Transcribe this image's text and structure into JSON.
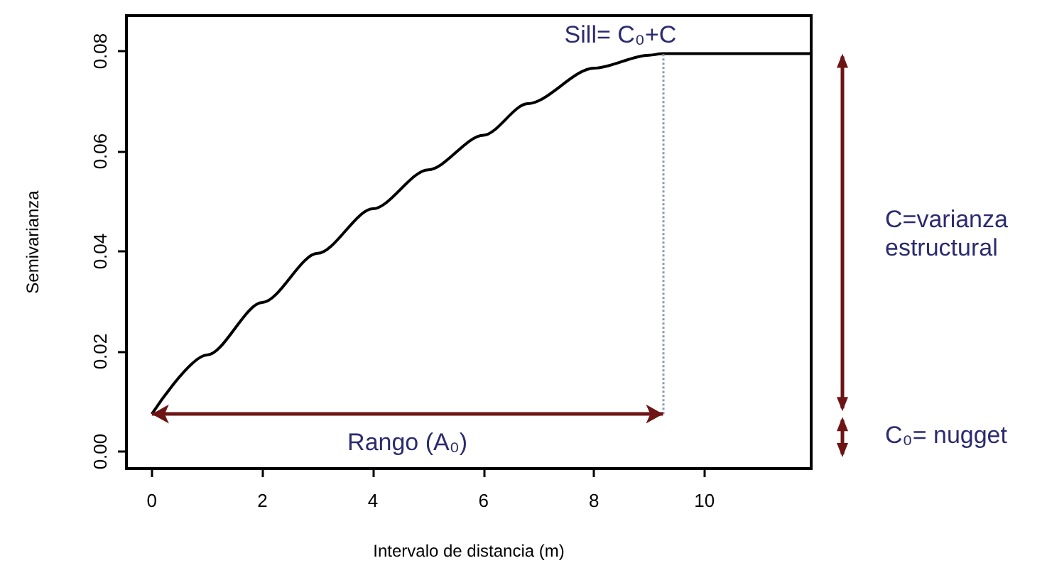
{
  "chart_data": {
    "type": "line",
    "xlabel": "Intervalo de distancia (m)",
    "ylabel": "Semivarianza",
    "x": [
      0,
      1,
      2,
      3,
      4,
      5,
      6,
      6.8,
      8,
      9,
      9.25,
      11.93
    ],
    "series": [
      {
        "color": "#000000",
        "values": [
          0.0075,
          0.0193,
          0.0298,
          0.0396,
          0.0485,
          0.0563,
          0.0632,
          0.0695,
          0.0766,
          0.0792,
          0.0795,
          0.0795
        ]
      }
    ],
    "xlim": [
      -0.46,
      11.93
    ],
    "ylim": [
      -0.0034,
      0.0871
    ],
    "xticks": [
      0,
      2,
      4,
      6,
      8,
      10
    ],
    "yticks": [
      {
        "value": 0,
        "label": "0.00"
      },
      {
        "value": 0.02,
        "label": "0.02"
      },
      {
        "value": 0.04,
        "label": "0.04"
      },
      {
        "value": 0.06,
        "label": "0.06"
      },
      {
        "value": 0.08,
        "label": "0.08"
      }
    ],
    "ref_lines": [
      {
        "axis": "x",
        "value": 9.25,
        "color": "#8a9ab0",
        "line_style": "dotted"
      }
    ],
    "annotations": [
      "Sill= C₀+C",
      "Rango (A₀)",
      "C=varianza estructural",
      "C₀= nugget"
    ],
    "grid": false,
    "marker": "none",
    "line_style": "solid"
  }
}
